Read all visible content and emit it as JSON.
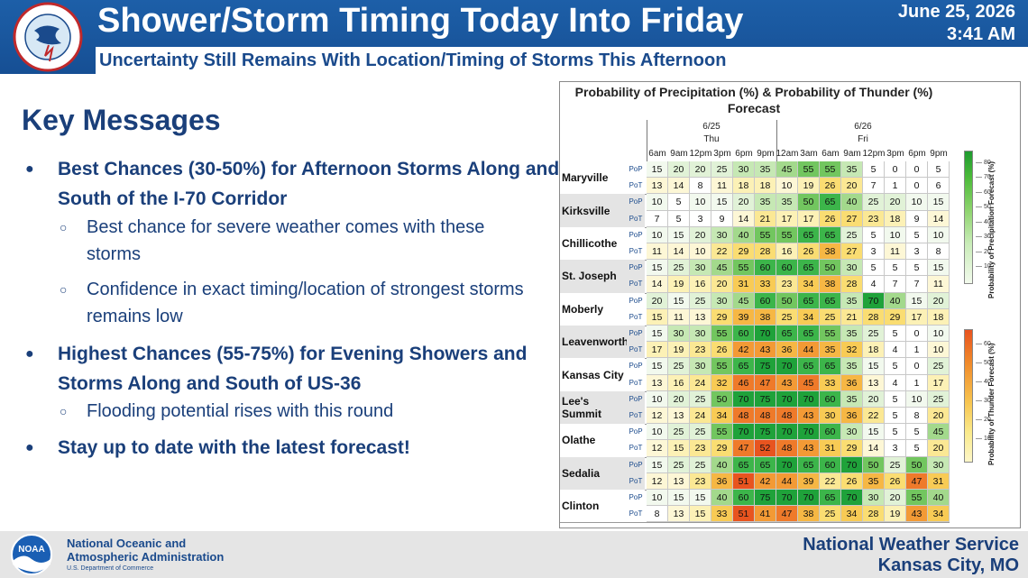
{
  "header": {
    "title": "Shower/Storm Timing Today Into Friday",
    "subtitle": "Uncertainty Still Remains With Location/Timing of Storms This Afternoon",
    "date": "June 25, 2026",
    "time": "3:41 AM",
    "logo_text": "NATIONAL WEATHER SERVICE"
  },
  "key_messages": {
    "title": "Key Messages",
    "bullet1": "Best Chances (30-50%) for Afternoon Storms Along and South of the I-70 Corridor",
    "sub1a": "Best chance for severe weather comes with these storms",
    "sub1b": "Confidence in exact timing/location of strongest storms remains low",
    "bullet2": "Highest Chances (55-75%) for Evening Showers and Storms Along and South of US-36",
    "sub2a": "Flooding potential rises with this round",
    "bullet3": "Stay up to date with the latest forecast!"
  },
  "chart_data": {
    "type": "table",
    "title_line1": "Probability of Precipitation (%) & Probability of Thunder (%)",
    "title_line2": "Forecast",
    "days": [
      {
        "date": "6/25",
        "name": "Thu",
        "start": 0,
        "count": 6
      },
      {
        "date": "6/26",
        "name": "Fri",
        "start": 6,
        "count": 8
      }
    ],
    "times": [
      "6am",
      "9am",
      "12pm",
      "3pm",
      "6pm",
      "9pm",
      "12am",
      "3am",
      "6am",
      "9am",
      "12pm",
      "3pm",
      "6pm",
      "9pm"
    ],
    "row_labels": {
      "pop": "PoP",
      "pot": "PoT"
    },
    "locations": [
      {
        "name": "Maryville",
        "pop": [
          15,
          20,
          20,
          25,
          30,
          35,
          45,
          55,
          55,
          35,
          5,
          0,
          0,
          5
        ],
        "pot": [
          13,
          14,
          8,
          11,
          18,
          18,
          10,
          19,
          26,
          20,
          7,
          1,
          0,
          6
        ]
      },
      {
        "name": "Kirksville",
        "pop": [
          10,
          5,
          10,
          15,
          20,
          35,
          35,
          50,
          65,
          40,
          25,
          20,
          10,
          15
        ],
        "pot": [
          7,
          5,
          3,
          9,
          14,
          21,
          17,
          17,
          26,
          27,
          23,
          18,
          9,
          14
        ]
      },
      {
        "name": "Chillicothe",
        "pop": [
          10,
          15,
          20,
          30,
          40,
          55,
          55,
          65,
          65,
          25,
          5,
          10,
          5,
          10
        ],
        "pot": [
          11,
          14,
          10,
          22,
          29,
          28,
          16,
          26,
          38,
          27,
          3,
          11,
          3,
          8
        ]
      },
      {
        "name": "St. Joseph",
        "pop": [
          15,
          25,
          30,
          45,
          55,
          60,
          60,
          65,
          50,
          30,
          5,
          5,
          5,
          15
        ],
        "pot": [
          14,
          19,
          16,
          20,
          31,
          33,
          23,
          34,
          38,
          28,
          4,
          7,
          7,
          11
        ]
      },
      {
        "name": "Moberly",
        "pop": [
          20,
          15,
          25,
          30,
          45,
          60,
          50,
          65,
          65,
          35,
          70,
          40,
          15,
          20
        ],
        "pot": [
          15,
          11,
          13,
          29,
          39,
          38,
          25,
          34,
          25,
          21,
          28,
          29,
          17,
          18
        ]
      },
      {
        "name": "Leavenworth",
        "pop": [
          15,
          30,
          30,
          55,
          60,
          70,
          65,
          65,
          55,
          35,
          25,
          5,
          0,
          10
        ],
        "pot": [
          17,
          19,
          23,
          26,
          42,
          43,
          36,
          44,
          35,
          32,
          18,
          4,
          1,
          10
        ]
      },
      {
        "name": "Kansas City",
        "pop": [
          15,
          25,
          30,
          55,
          65,
          75,
          70,
          65,
          65,
          35,
          15,
          5,
          0,
          25
        ],
        "pot": [
          13,
          16,
          24,
          32,
          46,
          47,
          43,
          45,
          33,
          36,
          13,
          4,
          1,
          17
        ]
      },
      {
        "name": "Lee's Summit",
        "pop": [
          10,
          20,
          25,
          50,
          70,
          75,
          70,
          70,
          60,
          35,
          20,
          5,
          10,
          25
        ],
        "pot": [
          12,
          13,
          24,
          34,
          48,
          48,
          48,
          43,
          30,
          36,
          22,
          5,
          8,
          20
        ]
      },
      {
        "name": "Olathe",
        "pop": [
          10,
          25,
          25,
          55,
          70,
          75,
          70,
          70,
          60,
          30,
          15,
          5,
          5,
          45
        ],
        "pot": [
          12,
          15,
          23,
          29,
          47,
          52,
          48,
          43,
          31,
          29,
          14,
          3,
          5,
          20
        ]
      },
      {
        "name": "Sedalia",
        "pop": [
          15,
          25,
          25,
          40,
          65,
          65,
          70,
          65,
          60,
          70,
          50,
          25,
          50,
          30
        ],
        "pot": [
          12,
          13,
          23,
          36,
          51,
          42,
          44,
          39,
          22,
          26,
          35,
          26,
          47,
          31
        ]
      },
      {
        "name": "Clinton",
        "pop": [
          10,
          15,
          15,
          40,
          60,
          75,
          70,
          70,
          65,
          70,
          30,
          20,
          55,
          40
        ],
        "pot": [
          8,
          13,
          15,
          33,
          51,
          41,
          47,
          38,
          25,
          34,
          28,
          19,
          43,
          34
        ]
      }
    ],
    "legend_pop": {
      "title": "Probability of Precipitation Forecast (%)",
      "ticks": [
        "80",
        "70",
        "60",
        "50",
        "40",
        "30",
        "20",
        "10"
      ]
    },
    "legend_pot": {
      "title": "Probability of Thunder Forecast (%)",
      "ticks": [
        "60",
        "50",
        "40",
        "30",
        "20",
        "10"
      ]
    }
  },
  "footer": {
    "noaa_line1": "National Oceanic and",
    "noaa_line2": "Atmospheric Administration",
    "noaa_dept": "U.S. Department of Commerce",
    "noaa_logo_text": "NOAA",
    "nws_name": "National Weather Service",
    "nws_office": "Kansas City, MO"
  }
}
